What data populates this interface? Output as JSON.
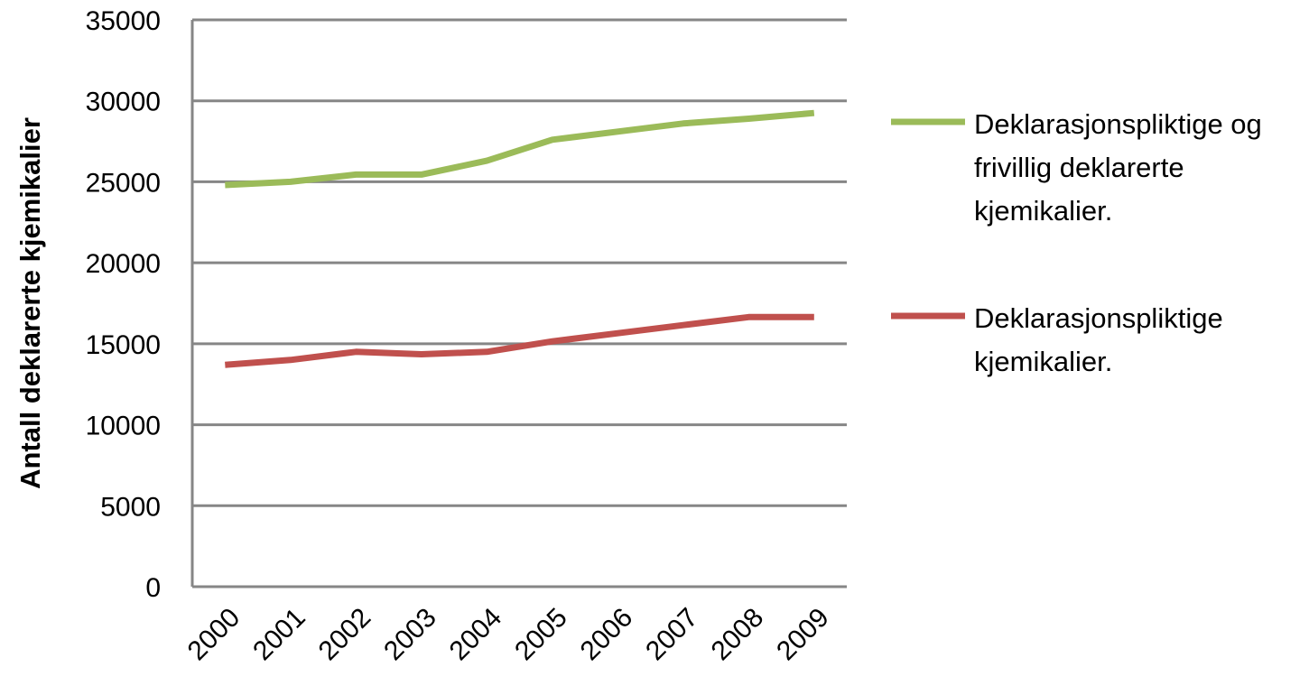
{
  "chart_data": {
    "type": "line",
    "title": "",
    "xlabel": "",
    "ylabel": "Antall deklarerte kjemikalier",
    "categories": [
      "2000",
      "2001",
      "2002",
      "2003",
      "2004",
      "2005",
      "2006",
      "2007",
      "2008",
      "2009"
    ],
    "ylim": [
      0,
      35000
    ],
    "yticks": [
      0,
      5000,
      10000,
      15000,
      20000,
      25000,
      30000,
      35000
    ],
    "grid": "horizontal",
    "legend_position": "right",
    "series": [
      {
        "name": "Deklarasjonspliktige og frivillig deklarerte kjemikalier.",
        "legend_lines": [
          "Deklarasjonspliktige og",
          "frivillig deklarerte",
          "kjemikalier."
        ],
        "color": "#9bbb59",
        "values": [
          24800,
          25000,
          25450,
          25450,
          26300,
          27600,
          28100,
          28600,
          28900,
          29250
        ]
      },
      {
        "name": "Deklarasjonspliktige kjemikalier.",
        "legend_lines": [
          "Deklarasjonspliktige",
          "kjemikalier."
        ],
        "color": "#c0504d",
        "values": [
          13700,
          14000,
          14500,
          14350,
          14500,
          15150,
          15650,
          16150,
          16650,
          16650
        ]
      }
    ]
  }
}
